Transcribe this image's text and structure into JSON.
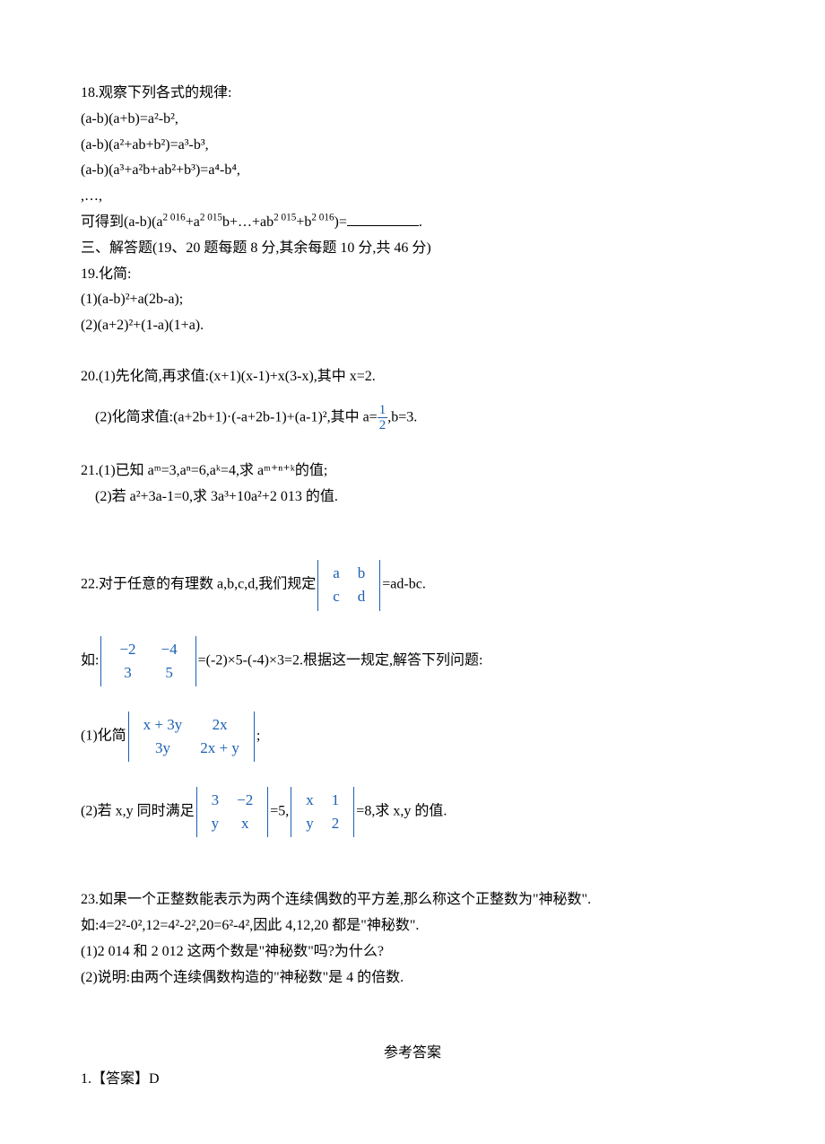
{
  "q18": {
    "title": "18.观察下列各式的规律:",
    "line1": "(a-b)(a+b)=a²-b²,",
    "line2": "(a-b)(a²+ab+b²)=a³-b³,",
    "line3": "(a-b)(a³+a²b+ab²+b³)=a⁴-b⁴,",
    "line4": ",…,",
    "line5_a": "可得到(a-b)(a",
    "line5_b": "+a",
    "line5_c": "b+…+ab",
    "line5_d": "+b",
    "line5_e": ")=",
    "sup2016": "2 016",
    "sup2015": "2 015",
    "period": "."
  },
  "section3": "三、解答题(19、20 题每题 8 分,其余每题 10 分,共 46 分)",
  "q19": {
    "title": "19.化简:",
    "p1": "(1)(a-b)²+a(2b-a);",
    "p2": "(2)(a+2)²+(1-a)(1+a)."
  },
  "q20": {
    "p1": "20.(1)先化简,再求值:(x+1)(x-1)+x(3-x),其中 x=2.",
    "p2_a": "(2)化简求值:(a+2b+1)·(-a+2b-1)+(a-1)²,其中 a=",
    "p2_b": ",b=3.",
    "frac_num": "1",
    "frac_den": "2"
  },
  "q21": {
    "p1": "21.(1)已知 aᵐ=3,aⁿ=6,aᵏ=4,求 aᵐ⁺ⁿ⁺ᵏ的值;",
    "p2": "(2)若 a²+3a-1=0,求 3a³+10a²+2 013 的值."
  },
  "q22": {
    "intro": "22.对于任意的有理数 a,b,c,d,我们规定",
    "intro_post": "=ad-bc.",
    "det1": {
      "r1c1": "a",
      "r1c2": "b",
      "r2c1": "c",
      "r2c2": "d"
    },
    "eg_pre": "如:",
    "eg_post": "=(-2)×5-(-4)×3=2.根据这一规定,解答下列问题:",
    "det2": {
      "r1c1": "−2",
      "r1c2": "−4",
      "r2c1": "3",
      "r2c2": "5"
    },
    "p1_pre": "(1)化简",
    "p1_post": ";",
    "det3": {
      "r1c1": "x + 3y",
      "r1c2": "2x",
      "r2c1": "3y",
      "r2c2": "2x + y"
    },
    "p2_pre": "(2)若 x,y 同时满足",
    "p2_mid": "=5,",
    "p2_post": "=8,求 x,y 的值.",
    "det4": {
      "r1c1": "3",
      "r1c2": "−2",
      "r2c1": "y",
      "r2c2": "x"
    },
    "det5": {
      "r1c1": "x",
      "r1c2": "1",
      "r2c1": "y",
      "r2c2": "2"
    }
  },
  "q23": {
    "l1": "23.如果一个正整数能表示为两个连续偶数的平方差,那么称这个正整数为\"神秘数\".",
    "l2": "如:4=2²-0²,12=4²-2²,20=6²-4²,因此 4,12,20 都是\"神秘数\".",
    "l3": "(1)2 014 和 2 012 这两个数是\"神秘数\"吗?为什么?",
    "l4": "(2)说明:由两个连续偶数构造的\"神秘数\"是 4 的倍数."
  },
  "answers": {
    "title": "参考答案",
    "a1": "1.【答案】D"
  },
  "colors": {
    "text": "#000000",
    "math": "#1a5fb4",
    "background": "#ffffff"
  },
  "fontsizes": {
    "body": 16,
    "sup": 11,
    "det": 17
  }
}
